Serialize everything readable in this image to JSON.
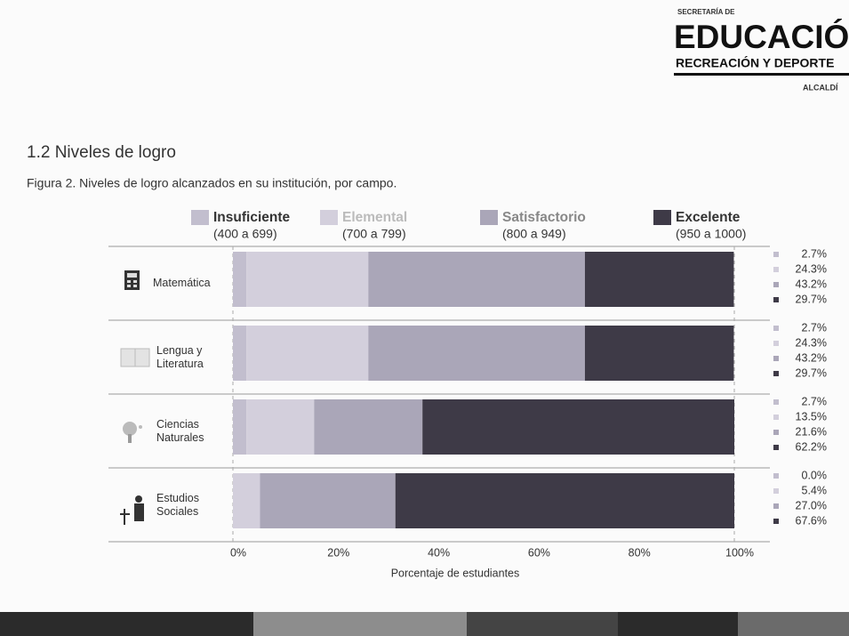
{
  "logo": {
    "line1": "SECRETARÍA DE",
    "line2": "EDUCACIÓN",
    "line3": "RECREACIÓN Y DEPORTE",
    "line4": "ALCALDÍ"
  },
  "section_title": "1.2 Niveles de logro",
  "chart_data": {
    "type": "stacked-barh",
    "title": "Figura 2. Niveles de logro alcanzados en su institución, por campo.",
    "xlabel": "Porcentaje de estudiantes",
    "categories": [
      "Matemática",
      "Lengua y Literatura",
      "Ciencias Naturales",
      "Estudios Sociales"
    ],
    "series": [
      {
        "name": "Insuficiente",
        "range": "(400 a 699)",
        "color": "#c2bece",
        "values": [
          2.7,
          2.7,
          2.7,
          0.0
        ],
        "value_labels": [
          "2.7%",
          "2.7%",
          "2.7%",
          "0.0%"
        ]
      },
      {
        "name": "Elemental",
        "range": "(700 a 799)",
        "color": "#d3cfdc",
        "values": [
          24.3,
          24.3,
          13.5,
          5.4
        ],
        "value_labels": [
          "24.3%",
          "24.3%",
          "13.5%",
          "5.4%"
        ]
      },
      {
        "name": "Satisfactorio",
        "range": "(800 a 949)",
        "color": "#aaa6b8",
        "values": [
          43.2,
          43.2,
          21.6,
          27.0
        ],
        "value_labels": [
          "43.2%",
          "43.2%",
          "21.6%",
          "27.0%"
        ]
      },
      {
        "name": "Excelente",
        "range": "(950 a 1000)",
        "color": "#3e3a47",
        "values": [
          29.7,
          29.7,
          62.2,
          67.6
        ],
        "value_labels": [
          "29.7%",
          "29.7%",
          "62.2%",
          "67.6%"
        ]
      }
    ],
    "xlim": [
      0,
      100
    ],
    "xticks": [
      {
        "value": 0,
        "label": "0%"
      },
      {
        "value": 20,
        "label": "20%"
      },
      {
        "value": 40,
        "label": "40%"
      },
      {
        "value": 60,
        "label": "60%"
      },
      {
        "value": 80,
        "label": "80%"
      },
      {
        "value": 100,
        "label": "100%"
      }
    ]
  }
}
